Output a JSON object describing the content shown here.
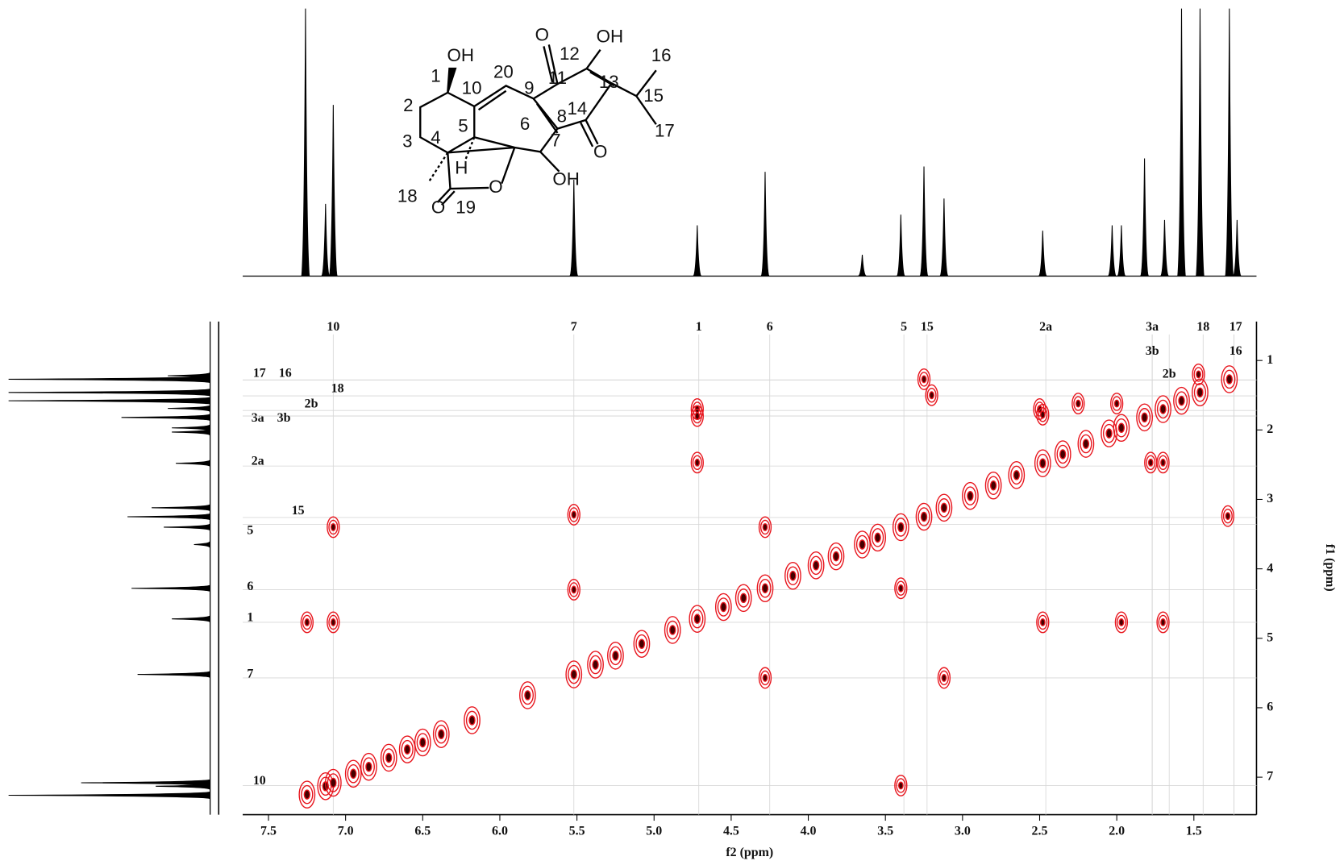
{
  "chart_data": {
    "type": "cosy",
    "x_label": "f2 (ppm)",
    "y_label": "f1 (ppm)",
    "xlim": [
      7.667,
      1.094
    ],
    "ylim": [
      0.44,
      7.54
    ],
    "xticks": [
      7.5,
      {
        "value": 7,
        "label": "7.0"
      },
      6.5,
      {
        "value": 6,
        "label": "6.0"
      },
      5.5,
      {
        "value": 5,
        "label": "5.0"
      },
      4.5,
      {
        "value": 4,
        "label": "4.0"
      },
      3.5,
      {
        "value": 3,
        "label": "3.0"
      },
      2.5,
      {
        "value": 2,
        "label": "2.0"
      },
      1.5
    ],
    "yticks": [
      1,
      2,
      3,
      4,
      5,
      6,
      7
    ],
    "grid": true,
    "color": "#e8141c",
    "cross_peaks": {
      "x": [
        3.25,
        3.2,
        4.72,
        4.72,
        4.72,
        2.5,
        2.48,
        2.25,
        2.0,
        1.78,
        1.7,
        5.52,
        7.08,
        4.28,
        1.28,
        5.52,
        3.4,
        7.25,
        7.08,
        2.48,
        1.97,
        1.7,
        4.28,
        3.12,
        3.4,
        1.47
      ],
      "y": [
        1.27,
        1.5,
        1.7,
        1.8,
        2.47,
        1.7,
        1.78,
        1.62,
        1.62,
        2.47,
        2.47,
        3.22,
        3.4,
        3.4,
        3.24,
        4.3,
        4.28,
        4.77,
        4.77,
        4.77,
        4.77,
        4.77,
        5.57,
        5.57,
        7.12,
        1.2
      ]
    },
    "diagonal_peaks": [
      7.25,
      7.13,
      7.08,
      6.95,
      6.85,
      6.72,
      6.6,
      6.5,
      6.38,
      6.18,
      5.82,
      5.52,
      5.38,
      5.25,
      5.08,
      4.88,
      4.72,
      4.55,
      4.42,
      4.28,
      4.1,
      3.95,
      3.82,
      3.65,
      3.55,
      3.4,
      3.25,
      3.12,
      2.95,
      2.8,
      2.65,
      2.48,
      2.35,
      2.2,
      2.05,
      1.97,
      1.82,
      1.7,
      1.58,
      1.46,
      1.27
    ],
    "projection": {
      "ppm": [
        7.26,
        7.13,
        7.08,
        5.52,
        4.72,
        4.28,
        3.65,
        3.4,
        3.25,
        3.12,
        2.48,
        2.03,
        1.97,
        1.82,
        1.69,
        1.58,
        1.46,
        1.27,
        1.22
      ],
      "height": [
        100,
        27,
        64,
        36,
        19,
        39,
        8,
        23,
        41,
        29,
        17,
        19,
        19,
        44,
        21,
        100,
        100,
        100,
        21
      ]
    },
    "f2_labels": [
      {
        "label": "10",
        "ppm": 7.08
      },
      {
        "label": "7",
        "ppm": 5.52
      },
      {
        "label": "1",
        "ppm": 4.71
      },
      {
        "label": "6",
        "ppm": 4.25
      },
      {
        "label": "5",
        "ppm": 3.38
      },
      {
        "label": "15",
        "ppm": 3.23
      },
      {
        "label": "2a",
        "ppm": 2.46
      },
      {
        "label": "3a",
        "ppm": 1.77
      },
      {
        "label": "18",
        "ppm": 1.44
      },
      {
        "label": "17",
        "ppm": 1.24
      },
      {
        "label": "3b",
        "ppm": 1.77
      },
      {
        "label": "16",
        "ppm": 1.24
      },
      {
        "label": "2b",
        "ppm": 1.66
      }
    ],
    "f1_labels": [
      {
        "label": "17",
        "ppm": 1.28
      },
      {
        "label": "16",
        "ppm": 1.28
      },
      {
        "label": "18",
        "ppm": 1.51
      },
      {
        "label": "2b",
        "ppm": 1.72
      },
      {
        "label": "3a",
        "ppm": 1.8
      },
      {
        "label": "3b",
        "ppm": 1.8
      },
      {
        "label": "2a",
        "ppm": 2.52
      },
      {
        "label": "15",
        "ppm": 3.26
      },
      {
        "label": "5",
        "ppm": 3.36
      },
      {
        "label": "6",
        "ppm": 4.3
      },
      {
        "label": "1",
        "ppm": 4.77
      },
      {
        "label": "7",
        "ppm": 5.57
      },
      {
        "label": "10",
        "ppm": 7.12
      }
    ]
  },
  "structure": {
    "labels": [
      "OH",
      "1",
      "20",
      "10",
      "9",
      "O",
      "12",
      "OH",
      "11",
      "13",
      "16",
      "15",
      "17",
      "8",
      "14",
      "O",
      "2",
      "5",
      "3",
      "4",
      "6",
      "7",
      "H",
      "O",
      "OH",
      "18",
      "O",
      "19"
    ]
  }
}
